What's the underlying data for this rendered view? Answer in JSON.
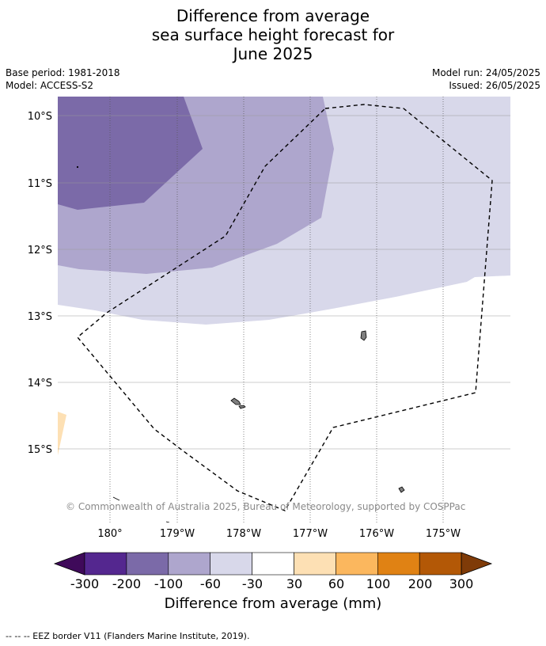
{
  "title_lines": [
    "Difference from average",
    "sea surface height forecast for",
    "June 2025"
  ],
  "meta": {
    "base_period": "Base period: 1981-2018",
    "model": "Model: ACCESS-S2",
    "model_run": "Model run: 24/05/2025",
    "issued": "Issued: 26/05/2025"
  },
  "map": {
    "lat_labels": [
      "10°S",
      "11°S",
      "12°S",
      "13°S",
      "14°S",
      "15°S"
    ],
    "lon_labels": [
      "180°",
      "179°W",
      "178°W",
      "177°W",
      "176°W",
      "175°W"
    ],
    "copyright": "© Commonwealth of Australia 2025, Bureau of Meteorology, supported by COSPPac"
  },
  "colorbar": {
    "ticks": [
      "-300",
      "-200",
      "-100",
      "-60",
      "-30",
      "30",
      "60",
      "100",
      "200",
      "300"
    ],
    "colors": [
      "#3f0a5a",
      "#54278f",
      "#7b6aa8",
      "#aea6cd",
      "#d8d8ea",
      "#ffffff",
      "#fde0b4",
      "#fbb75e",
      "#e08214",
      "#b35806",
      "#7f3b08"
    ],
    "title": "Difference from average (mm)"
  },
  "footer": "--  --  -- EEZ border V11 (Flanders Marine Institute, 2019)."
}
